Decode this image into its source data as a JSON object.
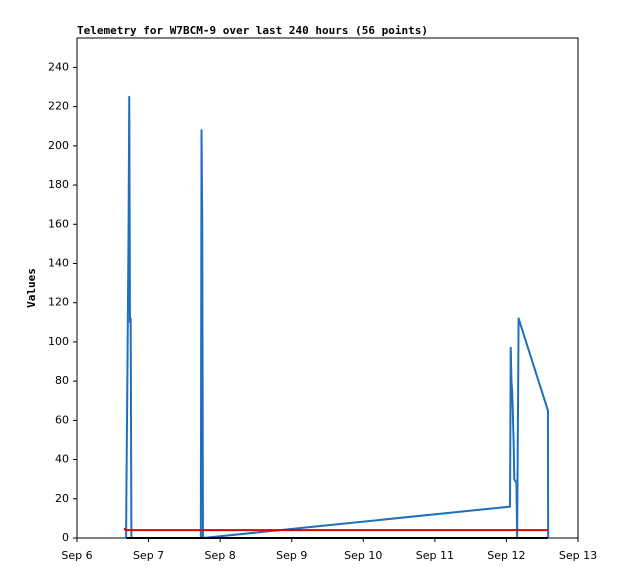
{
  "chart_data": {
    "type": "line",
    "title": "Telemetry for W7BCM-9 over last 240 hours (56 points)",
    "ylabel": "Values",
    "xlim": [
      6,
      13
    ],
    "xticks": [
      {
        "value": 6,
        "label": "Sep 6"
      },
      {
        "value": 7,
        "label": "Sep 7"
      },
      {
        "value": 8,
        "label": "Sep 8"
      },
      {
        "value": 9,
        "label": "Sep 9"
      },
      {
        "value": 10,
        "label": "Sep 10"
      },
      {
        "value": 11,
        "label": "Sep 11"
      },
      {
        "value": 12,
        "label": "Sep 12"
      },
      {
        "value": 13,
        "label": "Sep 13"
      }
    ],
    "ylim": [
      0,
      255
    ],
    "yticks": [
      0,
      20,
      40,
      60,
      80,
      100,
      120,
      140,
      160,
      180,
      200,
      220,
      240
    ],
    "grid": false,
    "series": [
      {
        "color": "#1f6fbf",
        "x": [
          6.686,
          6.69,
          6.7,
          6.71,
          6.72,
          6.73,
          6.74,
          6.75,
          6.76,
          7.73,
          7.74,
          7.75,
          7.76,
          12.05,
          12.06,
          12.07,
          12.08,
          12.09,
          12.1,
          12.11,
          12.14,
          12.15,
          12.17,
          12.58,
          12.583
        ],
        "values": [
          0,
          22,
          65,
          110,
          155,
          225,
          110,
          112,
          0,
          0,
          208,
          160,
          0,
          16,
          97,
          80,
          75,
          63,
          50,
          30,
          28,
          0,
          112,
          65,
          0
        ]
      },
      {
        "color": "#e00000",
        "x": [
          6.66,
          6.68,
          12.58
        ],
        "values": [
          5,
          4,
          4
        ]
      },
      {
        "color": "#000000",
        "x": [
          6.69,
          12.58
        ],
        "values": [
          0,
          0
        ]
      }
    ]
  }
}
